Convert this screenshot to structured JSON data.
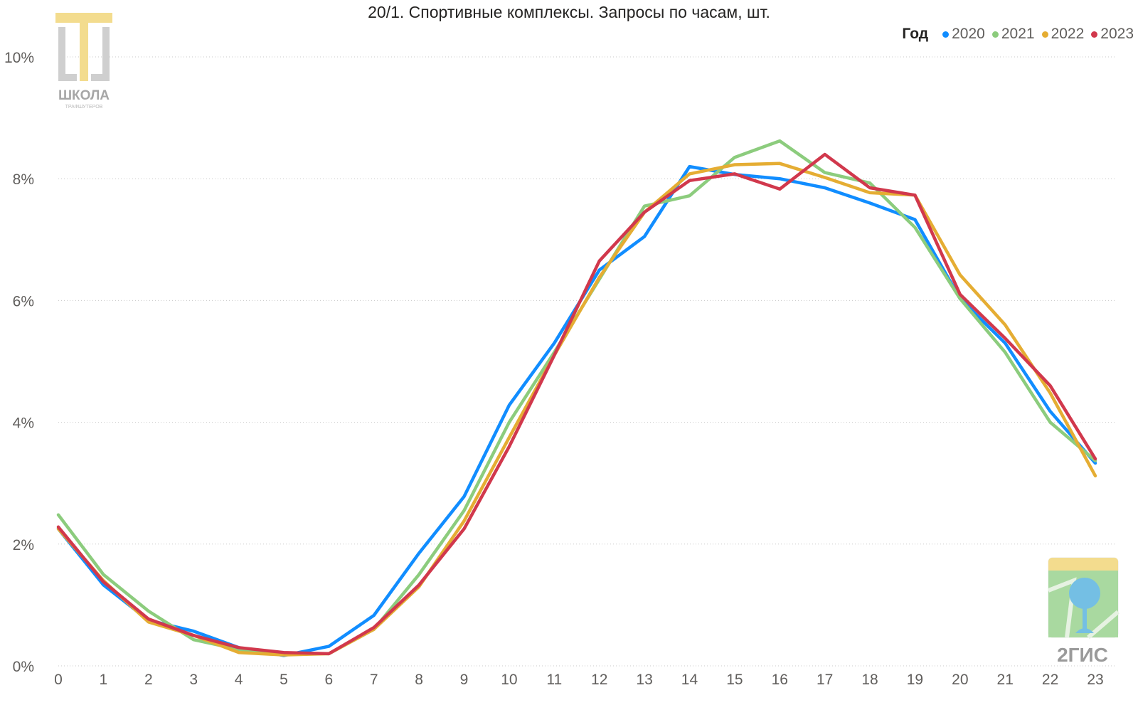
{
  "chart_data": {
    "type": "line",
    "title": "20/1. Спортивные комплексы. Запросы по часам, шт.",
    "xlabel": "",
    "ylabel": "",
    "x": [
      0,
      1,
      2,
      3,
      4,
      5,
      6,
      7,
      8,
      9,
      10,
      11,
      12,
      13,
      14,
      15,
      16,
      17,
      18,
      19,
      20,
      21,
      22,
      23
    ],
    "x_tick_labels": [
      "0",
      "1",
      "2",
      "3",
      "4",
      "5",
      "6",
      "7",
      "8",
      "9",
      "10",
      "11",
      "12",
      "13",
      "14",
      "15",
      "16",
      "17",
      "18",
      "19",
      "20",
      "21",
      "22",
      "23"
    ],
    "ylim": [
      0,
      10
    ],
    "y_ticks": [
      0,
      2,
      4,
      6,
      8,
      10
    ],
    "y_tick_labels": [
      "0%",
      "2%",
      "4%",
      "6%",
      "8%",
      "10%"
    ],
    "grid": "horizontal-dotted",
    "legend": {
      "title": "Год",
      "placement": "top-right"
    },
    "series": [
      {
        "name": "2020",
        "color": "#118dff",
        "values": [
          2.25,
          1.33,
          0.75,
          0.57,
          0.3,
          0.17,
          0.32,
          0.83,
          1.85,
          2.78,
          4.28,
          5.3,
          6.5,
          7.05,
          8.2,
          8.07,
          8.0,
          7.85,
          7.6,
          7.33,
          6.03,
          5.3,
          4.18,
          3.33
        ]
      },
      {
        "name": "2021",
        "color": "#8ccc7d",
        "values": [
          2.48,
          1.5,
          0.9,
          0.43,
          0.27,
          0.2,
          0.2,
          0.6,
          1.5,
          2.55,
          4.0,
          5.15,
          6.35,
          7.55,
          7.72,
          8.35,
          8.62,
          8.1,
          7.93,
          7.2,
          6.03,
          5.15,
          4.0,
          3.37
        ]
      },
      {
        "name": "2022",
        "color": "#e5ad33",
        "values": [
          2.25,
          1.4,
          0.72,
          0.5,
          0.22,
          0.18,
          0.2,
          0.6,
          1.3,
          2.38,
          3.75,
          5.1,
          6.38,
          7.45,
          8.08,
          8.23,
          8.25,
          8.02,
          7.77,
          7.73,
          6.42,
          5.6,
          4.48,
          3.12
        ]
      },
      {
        "name": "2023",
        "color": "#d1384c",
        "values": [
          2.28,
          1.38,
          0.77,
          0.5,
          0.3,
          0.22,
          0.2,
          0.63,
          1.33,
          2.25,
          3.6,
          5.1,
          6.65,
          7.45,
          7.97,
          8.08,
          7.83,
          8.4,
          7.85,
          7.73,
          6.1,
          5.38,
          4.6,
          3.4
        ]
      }
    ]
  },
  "logos": {
    "school": {
      "text": "ШКОЛА",
      "subtext": "ТРАФШУТЕРОВ",
      "icon": "school-logo-icon"
    },
    "gis": {
      "text": "2ГИС",
      "icon": "2gis-logo-icon"
    }
  }
}
